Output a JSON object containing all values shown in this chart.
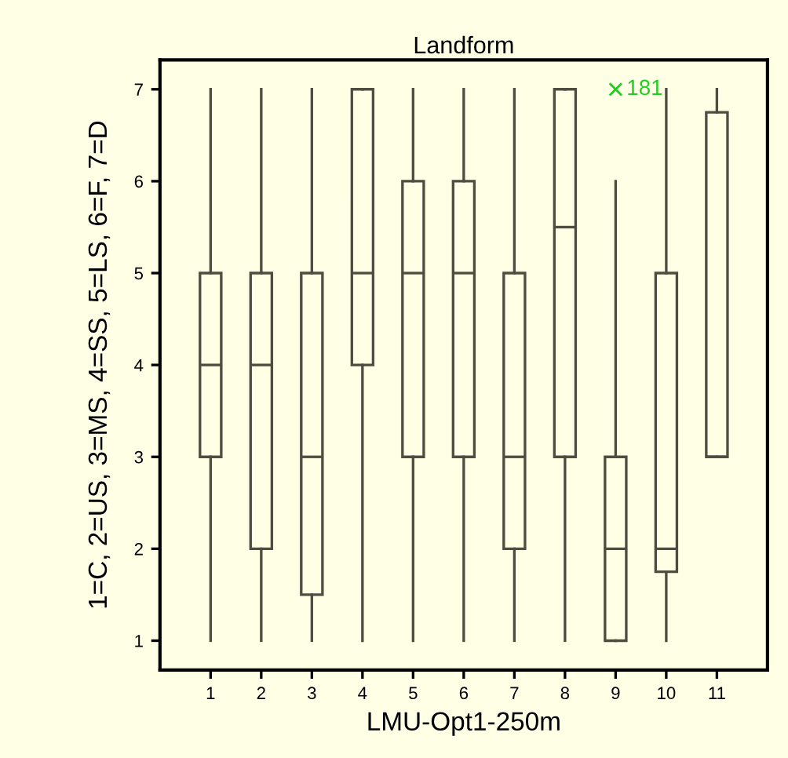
{
  "chart_data": {
    "type": "box",
    "title": "Landform",
    "xlabel": "LMU-Opt1-250m",
    "ylabel": "1=C, 2=US, 3=MS, 4=SS, 5=LS, 6=F, 7=D",
    "categories": [
      "1",
      "2",
      "3",
      "4",
      "5",
      "6",
      "7",
      "8",
      "9",
      "10",
      "11"
    ],
    "ylim": [
      0.68,
      7.32
    ],
    "yticks": [
      1,
      2,
      3,
      4,
      5,
      6,
      7
    ],
    "grid": false,
    "legend": false,
    "series": [
      {
        "color": "#4d4d40",
        "boxes": [
          {
            "low": 1,
            "q1": 3,
            "median": 4,
            "q3": 5,
            "high": 7
          },
          {
            "low": 1,
            "q1": 2,
            "median": 4,
            "q3": 5,
            "high": 7
          },
          {
            "low": 1,
            "q1": 1.5,
            "median": 3,
            "q3": 5,
            "high": 7
          },
          {
            "low": 1,
            "q1": 4,
            "median": 5,
            "q3": 7,
            "high": 7
          },
          {
            "low": 1,
            "q1": 3,
            "median": 5,
            "q3": 6,
            "high": 7
          },
          {
            "low": 1,
            "q1": 3,
            "median": 5,
            "q3": 6,
            "high": 7
          },
          {
            "low": 1,
            "q1": 2,
            "median": 3,
            "q3": 5,
            "high": 7
          },
          {
            "low": 1,
            "q1": 3,
            "median": 5.5,
            "q3": 7,
            "high": 7
          },
          {
            "low": 1,
            "q1": 1,
            "median": 2,
            "q3": 3,
            "high": 6
          },
          {
            "low": 1,
            "q1": 1.75,
            "median": 2,
            "q3": 5,
            "high": 7
          },
          {
            "low": 3,
            "q1": 3,
            "median": 3,
            "q3": 6.75,
            "high": 7
          }
        ]
      },
      {
        "type": "scatter",
        "color": "#22cc22",
        "marker": "cross",
        "x": [
          "9"
        ],
        "values": [
          7
        ]
      }
    ],
    "annotations": [
      {
        "text": "181",
        "x": "9",
        "y": 7
      }
    ]
  }
}
